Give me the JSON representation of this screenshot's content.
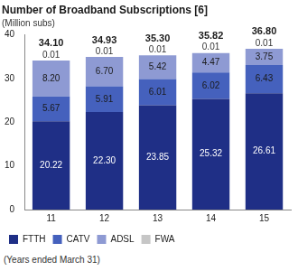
{
  "chart_data": {
    "type": "bar",
    "title": "Number of Broadband Subscriptions [6]",
    "subtitle": "(Million subs)",
    "footnote": "(Years ended March 31)",
    "categories": [
      "11",
      "12",
      "13",
      "14",
      "15"
    ],
    "series": [
      {
        "name": "FTTH",
        "color": "#1f2f86",
        "values": [
          20.22,
          22.3,
          23.85,
          25.32,
          26.61
        ],
        "value_labels": [
          "20.22",
          "22.30",
          "23.85",
          "25.32",
          "26.61"
        ]
      },
      {
        "name": "CATV",
        "color": "#4561bd",
        "values": [
          5.67,
          5.91,
          6.01,
          6.02,
          6.43
        ],
        "value_labels": [
          "5.67",
          "5.91",
          "6.01",
          "6.02",
          "6.43"
        ]
      },
      {
        "name": "ADSL",
        "color": "#8e9ad3",
        "values": [
          8.2,
          6.7,
          5.42,
          4.47,
          3.75
        ],
        "value_labels": [
          "8.20",
          "6.70",
          "5.42",
          "4.47",
          "3.75"
        ]
      },
      {
        "name": "FWA",
        "color": "#c6c6c6",
        "values": [
          0.01,
          0.01,
          0.01,
          0.01,
          0.01
        ],
        "value_labels": [
          "0.01",
          "0.01",
          "0.01",
          "0.01",
          "0.01"
        ]
      }
    ],
    "totals": {
      "values": [
        34.1,
        34.93,
        35.3,
        35.82,
        36.8
      ],
      "value_labels": [
        "34.10",
        "34.93",
        "35.30",
        "35.82",
        "36.80"
      ]
    },
    "stacked": true,
    "data_labels": true,
    "ylim": [
      0,
      40
    ],
    "yticks": [
      0,
      10,
      20,
      30,
      40
    ],
    "grid": false,
    "legend": "bottom"
  }
}
